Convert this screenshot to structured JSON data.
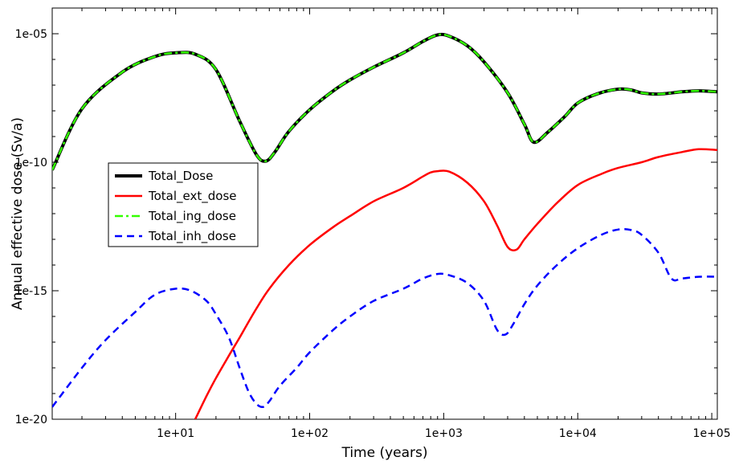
{
  "chart_data": {
    "type": "line",
    "title": "",
    "xlabel": "Time  (years)",
    "ylabel": "Annual effective dose  (Sv/a)",
    "x_scale": "log",
    "y_scale": "log",
    "xlim": [
      1.2,
      110000
    ],
    "ylim": [
      1e-20,
      0.0001
    ],
    "x_tick_values": [
      10,
      100,
      1000,
      10000,
      100000
    ],
    "x_tick_labels": [
      "1e+01",
      "1e+02",
      "1e+03",
      "1e+04",
      "1e+05"
    ],
    "y_tick_values": [
      1e-20,
      1e-15,
      1e-10,
      1e-05
    ],
    "y_tick_labels": [
      "1e-20",
      "1e-15",
      "1e-10",
      "1e-05"
    ],
    "grid": false,
    "legend_position": "center-left",
    "series": [
      {
        "name": "Total_Dose",
        "color": "#000000",
        "style": "solid",
        "x": [
          1.2,
          2,
          4,
          7,
          10,
          14,
          20,
          30,
          40,
          47,
          55,
          70,
          100,
          150,
          200,
          300,
          500,
          700,
          900,
          1100,
          1500,
          2000,
          3000,
          4000,
          4700,
          6000,
          8000,
          10000,
          14000,
          20000,
          25000,
          30000,
          40000,
          60000,
          80000,
          110000
        ],
        "y": [
          5e-11,
          1.2e-08,
          3.2e-07,
          1.3e-06,
          1.8e-06,
          1.6e-06,
          4e-07,
          4e-09,
          2e-10,
          1.1e-10,
          2.5e-10,
          1.6e-09,
          1.1e-08,
          6e-08,
          1.6e-07,
          5e-07,
          1.8e-06,
          5e-06,
          9e-06,
          8e-06,
          3.4e-06,
          8e-07,
          5e-08,
          3e-09,
          6e-10,
          1.5e-09,
          6e-09,
          2e-08,
          4.6e-08,
          7e-08,
          6.5e-08,
          5e-08,
          4.5e-08,
          5.5e-08,
          6e-08,
          5.5e-08
        ]
      },
      {
        "name": "Total_ext_dose",
        "color": "#ff0000",
        "style": "solid",
        "x": [
          14,
          17,
          20,
          25,
          30,
          40,
          50,
          70,
          100,
          150,
          200,
          300,
          500,
          700,
          800,
          900,
          1100,
          1500,
          2000,
          2500,
          3000,
          3500,
          4000,
          5000,
          7000,
          10000,
          15000,
          20000,
          30000,
          40000,
          60000,
          80000,
          110000
        ],
        "y": [
          1e-20,
          8e-20,
          4e-19,
          3e-18,
          1.5e-17,
          2e-16,
          1.2e-15,
          1e-14,
          6e-14,
          3e-13,
          8e-13,
          3e-12,
          1e-11,
          2.8e-11,
          4e-11,
          4.5e-11,
          4.3e-11,
          1.6e-11,
          3e-12,
          3.5e-13,
          5e-14,
          4e-14,
          1e-13,
          4e-13,
          2.6e-12,
          1.3e-11,
          3.5e-11,
          6e-11,
          1e-10,
          1.6e-10,
          2.5e-10,
          3.2e-10,
          3e-10
        ]
      },
      {
        "name": "Total_ing_dose",
        "color": "#33ff00",
        "style": "dashdot",
        "x": [
          1.2,
          2,
          4,
          7,
          10,
          14,
          20,
          30,
          40,
          47,
          55,
          70,
          100,
          150,
          200,
          300,
          500,
          700,
          900,
          1100,
          1500,
          2000,
          3000,
          4000,
          4700,
          6000,
          8000,
          10000,
          14000,
          20000,
          25000,
          30000,
          40000,
          60000,
          80000,
          110000
        ],
        "y": [
          5e-11,
          1.2e-08,
          3.2e-07,
          1.3e-06,
          1.8e-06,
          1.6e-06,
          4e-07,
          4e-09,
          2e-10,
          1.1e-10,
          2.5e-10,
          1.6e-09,
          1.1e-08,
          6e-08,
          1.6e-07,
          5e-07,
          1.8e-06,
          5e-06,
          9e-06,
          8e-06,
          3.4e-06,
          8e-07,
          5e-08,
          3e-09,
          6e-10,
          1.5e-09,
          6e-09,
          2e-08,
          4.6e-08,
          7e-08,
          6.5e-08,
          5e-08,
          4.5e-08,
          5.5e-08,
          6e-08,
          5.5e-08
        ]
      },
      {
        "name": "Total_inh_dose",
        "color": "#0000ff",
        "style": "dashed",
        "x": [
          1.2,
          2,
          3,
          5,
          7,
          10,
          13,
          17,
          20,
          25,
          30,
          35,
          40,
          45,
          50,
          60,
          80,
          100,
          150,
          200,
          300,
          500,
          700,
          900,
          1100,
          1500,
          2000,
          2500,
          2900,
          3300,
          4000,
          5000,
          7000,
          10000,
          15000,
          20000,
          25000,
          30000,
          40000,
          50000,
          60000,
          80000,
          110000
        ],
        "y": [
          3e-20,
          1e-18,
          1.2e-17,
          1.5e-16,
          7e-16,
          1.2e-15,
          1e-15,
          4e-16,
          1.2e-16,
          1.5e-17,
          1e-18,
          1.2e-19,
          4e-20,
          3e-20,
          5e-20,
          2e-19,
          1e-18,
          4e-18,
          3e-17,
          1e-16,
          4e-16,
          1.2e-15,
          3e-15,
          4.5e-15,
          4e-15,
          2e-15,
          4e-16,
          3e-17,
          2e-17,
          5e-17,
          3e-16,
          1.6e-15,
          1e-14,
          4.5e-14,
          1.5e-13,
          2.4e-13,
          2.3e-13,
          1.5e-13,
          3e-14,
          3e-15,
          3e-15,
          3.5e-15,
          3.5e-15
        ]
      }
    ]
  }
}
